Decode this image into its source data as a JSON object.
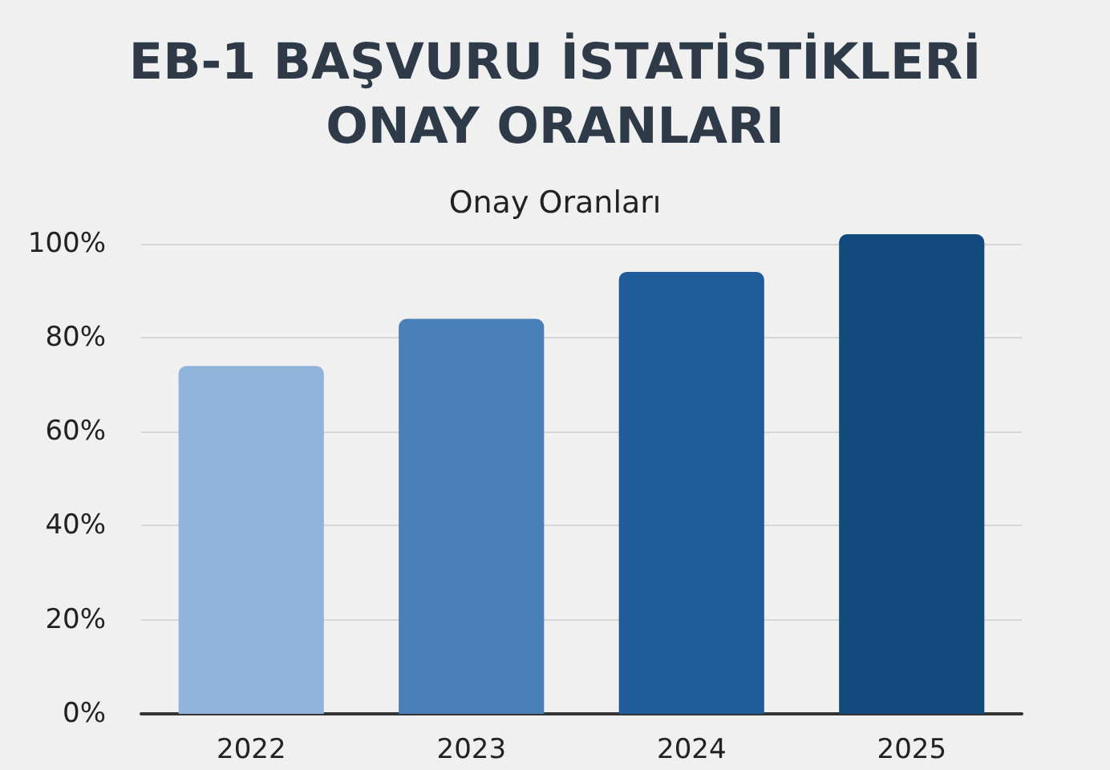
{
  "chart_data": {
    "type": "bar",
    "title": "EB-1 BAŞVURU İSTATİSTİKLERİ\nONAY ORANLARI",
    "subtitle": "Onay Oranları",
    "categories": [
      "2022",
      "2023",
      "2024",
      "2025"
    ],
    "values": [
      74,
      84,
      94,
      102
    ],
    "colors": [
      "#8fb3db",
      "#4a80b8",
      "#1f5c99",
      "#134a7e"
    ],
    "yticks": [
      {
        "value": 0,
        "label": "0%"
      },
      {
        "value": 20,
        "label": "20%"
      },
      {
        "value": 40,
        "label": "40%"
      },
      {
        "value": 60,
        "label": "60%"
      },
      {
        "value": 80,
        "label": "80%"
      },
      {
        "value": 100,
        "label": "100%"
      }
    ],
    "ylim": [
      0,
      102
    ],
    "grid": "y"
  }
}
